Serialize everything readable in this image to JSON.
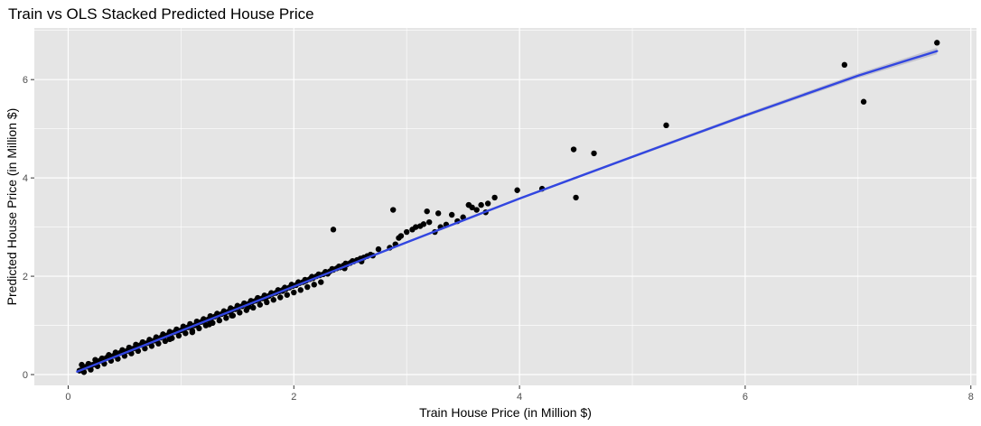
{
  "chart_data": {
    "type": "scatter",
    "title": "Train vs OLS Stacked Predicted House Price",
    "xlabel": "Train House Price (in Million $)",
    "ylabel": "Predicted House Price (in Million $)",
    "xlim": [
      -0.3,
      8.05
    ],
    "ylim": [
      -0.22,
      7.05
    ],
    "x_ticks": [
      0,
      2,
      4,
      6,
      8
    ],
    "y_ticks": [
      0,
      2,
      4,
      6
    ],
    "x_tick_labels": [
      "0",
      "2",
      "4",
      "6",
      "8"
    ],
    "y_tick_labels": [
      "0",
      "2",
      "4",
      "6"
    ],
    "grid": true,
    "panel_background": "#e5e5e5",
    "grid_color": "#ffffff",
    "point_color": "#000000",
    "trend_color": "#3246e0",
    "ribbon_color": "#9a9ab4",
    "trend_line": {
      "x": [
        0.08,
        1.0,
        2.0,
        3.0,
        4.0,
        5.0,
        6.0,
        7.0,
        7.7
      ],
      "y": [
        0.06,
        0.89,
        1.79,
        2.69,
        3.58,
        4.43,
        5.27,
        6.08,
        6.58
      ]
    },
    "series": [
      {
        "x": [
          0.1,
          0.13,
          0.16,
          0.19,
          0.22,
          0.25,
          0.28,
          0.31,
          0.34,
          0.37,
          0.4,
          0.43,
          0.46,
          0.49,
          0.52,
          0.55,
          0.58,
          0.61,
          0.64,
          0.67,
          0.7,
          0.73,
          0.76,
          0.79,
          0.82,
          0.85,
          0.88,
          0.91,
          0.94,
          0.97,
          1.0,
          1.03,
          1.06,
          1.09,
          1.12,
          1.15,
          1.18,
          1.21,
          1.24,
          1.27,
          1.3,
          1.33,
          1.36,
          1.39,
          1.42,
          1.45,
          1.48,
          1.51,
          1.54,
          1.57,
          1.6,
          1.63,
          1.66,
          1.69,
          1.72,
          1.75,
          1.78,
          1.81,
          1.84,
          1.87,
          1.9,
          1.93,
          1.96,
          1.99,
          2.02,
          2.05,
          2.08,
          2.11,
          2.14,
          2.17,
          2.2,
          2.23,
          2.26,
          2.29,
          2.32,
          2.35,
          2.38,
          2.41,
          2.44,
          2.47,
          2.5,
          2.53,
          2.56,
          2.59,
          2.62,
          2.65,
          2.68,
          0.12,
          0.18,
          0.24,
          0.3,
          0.36,
          0.42,
          0.48,
          0.54,
          0.6,
          0.66,
          0.72,
          0.78,
          0.84,
          0.9,
          0.96,
          1.02,
          1.08,
          1.14,
          1.2,
          1.26,
          1.32,
          1.38,
          1.44,
          1.5,
          1.56,
          1.62,
          1.68,
          1.74,
          1.8,
          1.86,
          1.92,
          1.98,
          2.04,
          2.1,
          2.16,
          2.22,
          2.28,
          2.34,
          2.4,
          2.46,
          2.52,
          0.14,
          0.2,
          0.26,
          0.32,
          0.38,
          0.44,
          0.5,
          0.56,
          0.62,
          0.68,
          0.74,
          0.8,
          0.86,
          0.92,
          0.98,
          1.04,
          1.1,
          1.16,
          1.22,
          1.28,
          1.34,
          1.4,
          1.46,
          1.52,
          1.58,
          1.64,
          1.7,
          1.76,
          1.82,
          1.88,
          1.94,
          2.0,
          2.06,
          2.12,
          2.18,
          2.24,
          0.9,
          1.1,
          1.25,
          1.45,
          1.6,
          1.75,
          1.9,
          2.1,
          2.3,
          2.45,
          2.6,
          2.7,
          2.75,
          2.85,
          2.9,
          2.93,
          2.95,
          3.0,
          3.05,
          3.08,
          3.12,
          3.15,
          3.2,
          3.25,
          3.3,
          3.35,
          3.4,
          3.45,
          3.5,
          3.55,
          3.58,
          3.62,
          3.66,
          3.7,
          3.72,
          3.78,
          2.35,
          2.88,
          3.18,
          3.28,
          3.55,
          3.98,
          4.2,
          4.5,
          4.48,
          4.66,
          5.3,
          6.88,
          7.05,
          7.7
        ],
        "y": [
          0.08,
          0.14,
          0.16,
          0.2,
          0.2,
          0.26,
          0.28,
          0.3,
          0.34,
          0.35,
          0.38,
          0.42,
          0.44,
          0.47,
          0.48,
          0.52,
          0.53,
          0.56,
          0.6,
          0.62,
          0.64,
          0.66,
          0.69,
          0.72,
          0.75,
          0.77,
          0.8,
          0.82,
          0.86,
          0.88,
          0.9,
          0.93,
          0.96,
          0.99,
          1.0,
          1.04,
          1.07,
          1.1,
          1.12,
          1.15,
          1.18,
          1.2,
          1.23,
          1.25,
          1.28,
          1.31,
          1.33,
          1.37,
          1.39,
          1.42,
          1.44,
          1.47,
          1.5,
          1.52,
          1.55,
          1.58,
          1.6,
          1.64,
          1.66,
          1.69,
          1.72,
          1.74,
          1.77,
          1.8,
          1.82,
          1.86,
          1.88,
          1.91,
          1.94,
          1.96,
          2.0,
          2.02,
          2.04,
          2.08,
          2.1,
          2.13,
          2.16,
          2.18,
          2.22,
          2.24,
          2.27,
          2.3,
          2.33,
          2.36,
          2.38,
          2.41,
          2.44,
          0.2,
          0.22,
          0.3,
          0.33,
          0.4,
          0.45,
          0.5,
          0.55,
          0.61,
          0.66,
          0.71,
          0.76,
          0.82,
          0.87,
          0.92,
          0.98,
          1.03,
          1.08,
          1.13,
          1.19,
          1.24,
          1.29,
          1.35,
          1.4,
          1.45,
          1.5,
          1.56,
          1.61,
          1.66,
          1.72,
          1.77,
          1.83,
          1.88,
          1.93,
          1.99,
          2.04,
          2.09,
          2.15,
          2.2,
          2.26,
          2.31,
          0.05,
          0.1,
          0.17,
          0.22,
          0.28,
          0.32,
          0.38,
          0.43,
          0.48,
          0.53,
          0.58,
          0.63,
          0.68,
          0.74,
          0.79,
          0.84,
          0.89,
          0.94,
          1.0,
          1.05,
          1.1,
          1.15,
          1.2,
          1.26,
          1.31,
          1.36,
          1.42,
          1.47,
          1.52,
          1.57,
          1.62,
          1.67,
          1.72,
          1.78,
          1.83,
          1.88,
          0.72,
          0.86,
          1.02,
          1.2,
          1.38,
          1.54,
          1.7,
          1.9,
          2.05,
          2.16,
          2.3,
          2.42,
          2.55,
          2.58,
          2.65,
          2.78,
          2.82,
          2.9,
          2.95,
          3.0,
          3.02,
          3.06,
          3.1,
          2.9,
          3.0,
          3.05,
          3.25,
          3.12,
          3.2,
          3.45,
          3.4,
          3.35,
          3.45,
          3.3,
          3.48,
          3.6,
          2.95,
          3.35,
          3.32,
          3.28,
          3.45,
          3.75,
          3.78,
          3.6,
          4.58,
          4.5,
          5.07,
          6.3,
          5.55,
          6.75
        ]
      }
    ]
  }
}
